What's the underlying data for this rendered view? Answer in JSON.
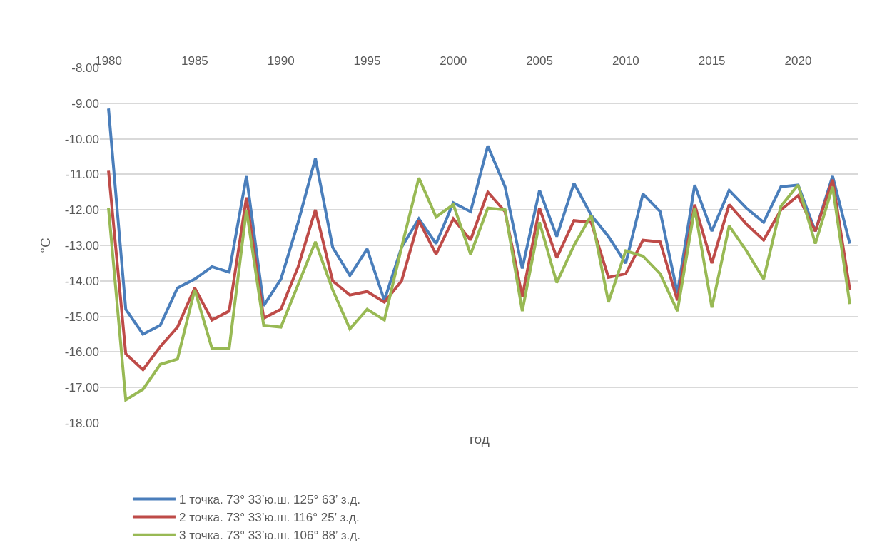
{
  "chart_data": {
    "type": "line",
    "xlabel": "год",
    "ylabel": "°C",
    "x": [
      1980,
      1981,
      1982,
      1983,
      1984,
      1985,
      1986,
      1987,
      1988,
      1989,
      1990,
      1991,
      1992,
      1993,
      1994,
      1995,
      1996,
      1997,
      1998,
      1999,
      2000,
      2001,
      2002,
      2003,
      2004,
      2005,
      2006,
      2007,
      2008,
      2009,
      2010,
      2011,
      2012,
      2013,
      2014,
      2015,
      2016,
      2017,
      2018,
      2019,
      2020,
      2021,
      2022,
      2023
    ],
    "series": [
      {
        "name": "1 точка. 73° 33’ю.ш. 125° 63’ з.д.",
        "color": "#4a7ebb",
        "values": [
          -9.15,
          -14.8,
          -15.5,
          -15.25,
          -14.2,
          -13.95,
          -13.6,
          -13.75,
          -11.05,
          -14.7,
          -13.95,
          -12.35,
          -10.55,
          -13.05,
          -13.85,
          -13.1,
          -14.55,
          -13.05,
          -12.25,
          -12.95,
          -11.8,
          -12.05,
          -10.2,
          -11.35,
          -13.65,
          -11.45,
          -12.75,
          -11.25,
          -12.15,
          -12.75,
          -13.5,
          -11.55,
          -12.05,
          -14.35,
          -11.3,
          -12.6,
          -11.45,
          -11.95,
          -12.35,
          -11.35,
          -11.3,
          -12.6,
          -11.05,
          -12.95
        ]
      },
      {
        "name": "2 точка. 73° 33’ю.ш. 116° 25’ з.д.",
        "color": "#be4b48",
        "values": [
          -10.9,
          -16.05,
          -16.5,
          -15.85,
          -15.3,
          -14.2,
          -15.1,
          -14.85,
          -11.65,
          -15.05,
          -14.8,
          -13.6,
          -12.0,
          -14.0,
          -14.4,
          -14.3,
          -14.6,
          -14.0,
          -12.3,
          -13.25,
          -12.25,
          -12.85,
          -11.5,
          -12.05,
          -14.45,
          -11.95,
          -13.35,
          -12.3,
          -12.35,
          -13.9,
          -13.8,
          -12.85,
          -12.9,
          -14.55,
          -11.85,
          -13.5,
          -11.85,
          -12.4,
          -12.85,
          -12.0,
          -11.6,
          -12.6,
          -11.15,
          -14.25
        ]
      },
      {
        "name": "3 точка. 73° 33’ю.ш. 106° 88’ з.д.",
        "color": "#98b954",
        "values": [
          -11.95,
          -17.35,
          -17.05,
          -16.35,
          -16.2,
          -14.25,
          -15.9,
          -15.9,
          -12.0,
          -15.25,
          -15.3,
          -14.1,
          -12.9,
          -14.25,
          -15.35,
          -14.8,
          -15.1,
          -13.05,
          -11.1,
          -12.2,
          -11.85,
          -13.25,
          -11.95,
          -12.0,
          -14.85,
          -12.35,
          -14.05,
          -13.0,
          -12.15,
          -14.6,
          -13.15,
          -13.3,
          -13.8,
          -14.85,
          -11.95,
          -14.75,
          -12.45,
          -13.15,
          -13.95,
          -11.9,
          -11.3,
          -12.95,
          -11.35,
          -14.65
        ]
      }
    ],
    "xlim": [
      1979.5,
      2023.5
    ],
    "xticks": [
      1980,
      1985,
      1990,
      1995,
      2000,
      2005,
      2010,
      2015,
      2020
    ],
    "ylim": [
      -18,
      -8
    ],
    "yticks": [
      {
        "value": -8,
        "label": "-8.00"
      },
      {
        "value": -9,
        "label": "-9.00"
      },
      {
        "value": -10,
        "label": "-10.00"
      },
      {
        "value": -11,
        "label": "-11.00"
      },
      {
        "value": -12,
        "label": "-12.00"
      },
      {
        "value": -13,
        "label": "-13.00"
      },
      {
        "value": -14,
        "label": "-14.00"
      },
      {
        "value": -15,
        "label": "-15.00"
      },
      {
        "value": -16,
        "label": "-16.00"
      },
      {
        "value": -17,
        "label": "-17.00"
      },
      {
        "value": -18,
        "label": "-18.00"
      }
    ],
    "grid": "y",
    "legend": "bottom",
    "marker": "none",
    "line_style": "solid"
  }
}
